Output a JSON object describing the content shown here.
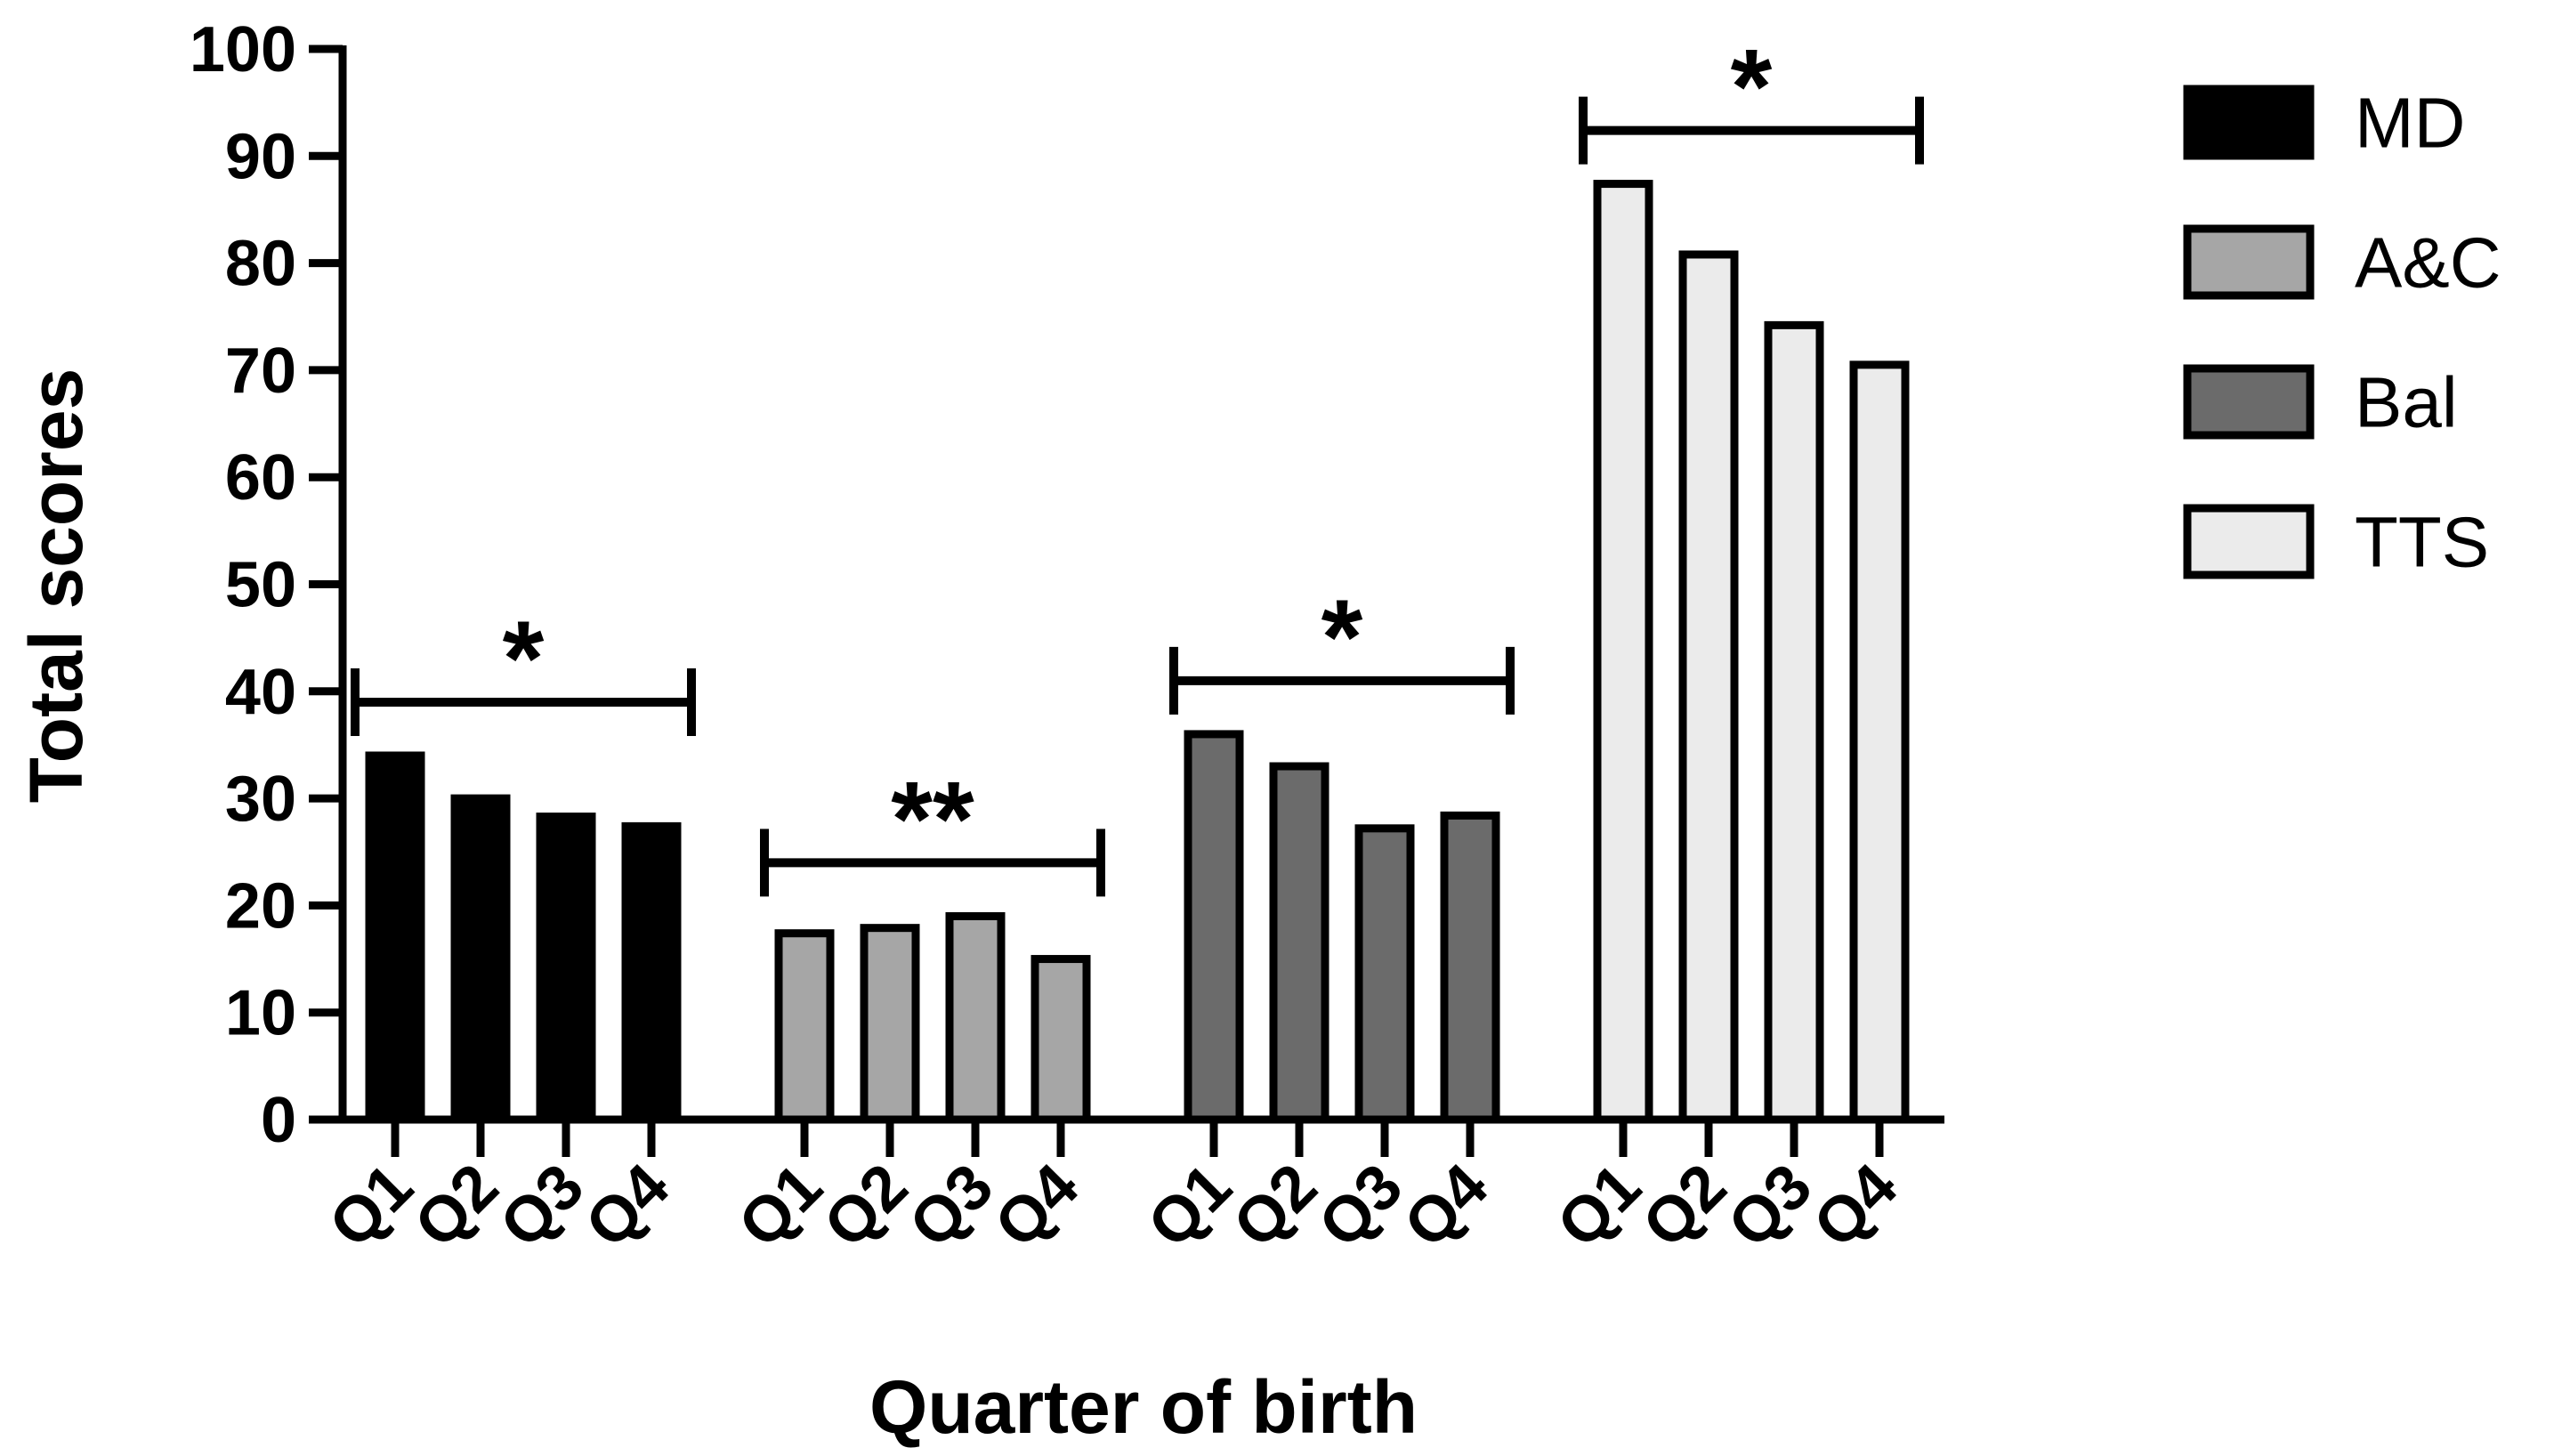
{
  "chart_data": {
    "type": "bar",
    "xlabel": "Quarter of birth",
    "ylabel": "Total scores",
    "ylim": [
      0,
      100
    ],
    "yticks": [
      0,
      10,
      20,
      30,
      40,
      50,
      60,
      70,
      80,
      90,
      100
    ],
    "categories": [
      "Q1",
      "Q2",
      "Q3",
      "Q4"
    ],
    "legend_position": "top-right",
    "series": [
      {
        "name": "MD",
        "color": "#000000",
        "values": [
          34,
          30,
          28.3,
          27.4
        ],
        "significance": "*"
      },
      {
        "name": "A&C",
        "color": "#a6a6a6",
        "values": [
          17.4,
          17.9,
          19,
          15
        ],
        "significance": "**"
      },
      {
        "name": "Bal",
        "color": "#6b6b6b",
        "values": [
          36,
          33,
          27.2,
          28.4
        ],
        "significance": "*"
      },
      {
        "name": "TTS",
        "color": "#ebebeb",
        "values": [
          87.4,
          80.8,
          74.2,
          70.5
        ],
        "significance": "*"
      }
    ]
  }
}
